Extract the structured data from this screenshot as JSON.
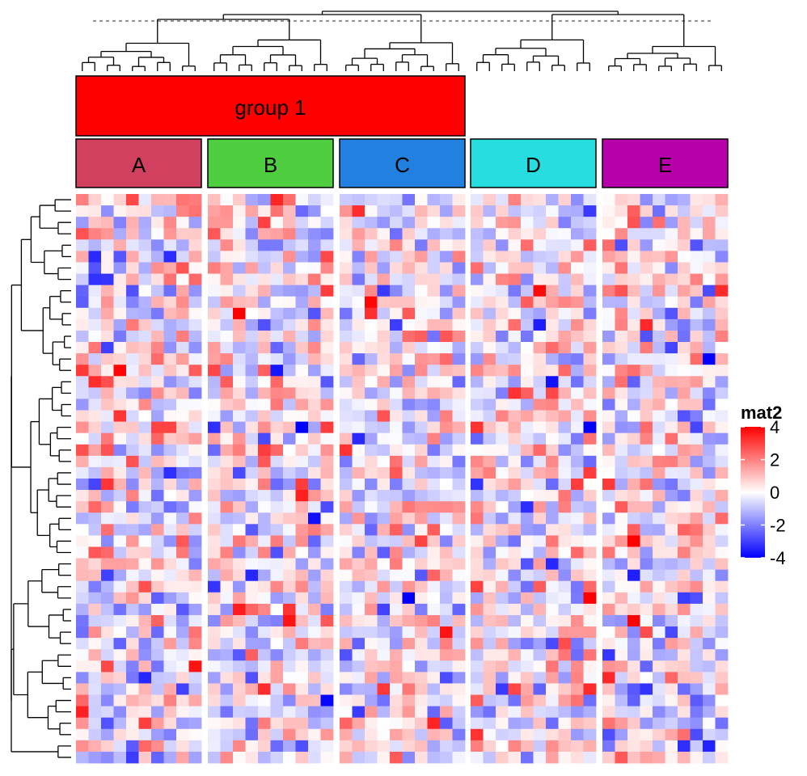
{
  "chart_data": {
    "type": "heatmap",
    "title": "",
    "xlabel": "",
    "ylabel": "",
    "n_rows": 50,
    "top_annotation": {
      "label": "group 1",
      "color": "#ff0000",
      "covers_slices": [
        "A",
        "B",
        "C"
      ]
    },
    "column_slices": [
      {
        "label": "A",
        "color": "#d2405f",
        "n_cols": 10
      },
      {
        "label": "B",
        "color": "#4fcf3f",
        "n_cols": 10
      },
      {
        "label": "C",
        "color": "#2280e0",
        "n_cols": 10
      },
      {
        "label": "D",
        "color": "#28dde0",
        "n_cols": 10
      },
      {
        "label": "E",
        "color": "#b800aa",
        "n_cols": 10
      }
    ],
    "color_scale": {
      "low": "#0000ff",
      "mid": "#ffffff",
      "high": "#ff0000",
      "min": -4,
      "max": 4
    },
    "legend": {
      "title": "mat2",
      "position": "right",
      "ticks": [
        {
          "value": 4,
          "label": "4"
        },
        {
          "value": 2,
          "label": "2"
        },
        {
          "value": 0,
          "label": "0"
        },
        {
          "value": -2,
          "label": "-2"
        },
        {
          "value": -4,
          "label": "-4"
        }
      ]
    },
    "values_note_free": true,
    "row_dendrogram": true,
    "column_dendrogram": true
  }
}
